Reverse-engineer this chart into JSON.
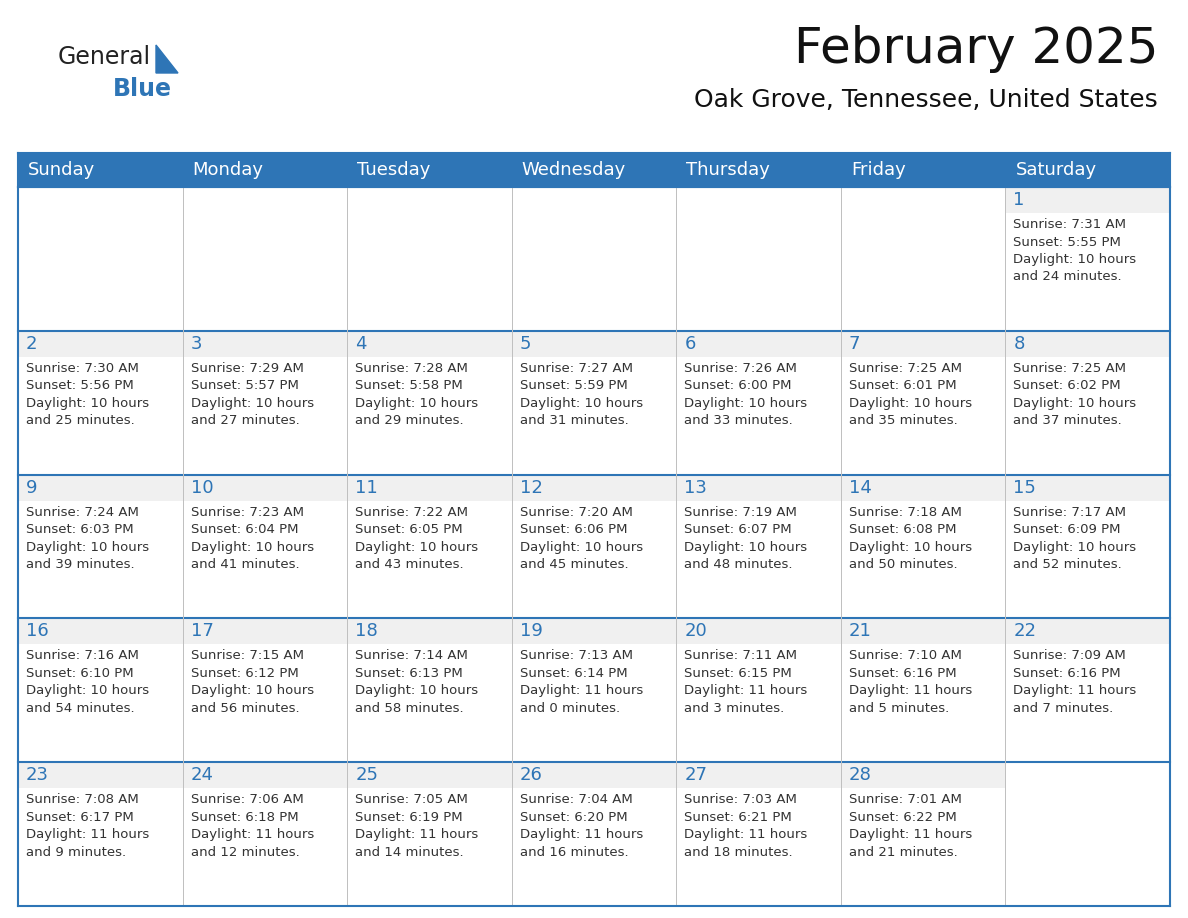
{
  "title": "February 2025",
  "subtitle": "Oak Grove, Tennessee, United States",
  "header_color": "#2E75B6",
  "header_text_color": "#FFFFFF",
  "grid_line_color": "#2E75B6",
  "day_num_bg_color": "#F0F0F0",
  "day_headers": [
    "Sunday",
    "Monday",
    "Tuesday",
    "Wednesday",
    "Thursday",
    "Friday",
    "Saturday"
  ],
  "title_fontsize": 36,
  "subtitle_fontsize": 18,
  "header_fontsize": 13,
  "cell_fontsize": 9.5,
  "day_num_fontsize": 13,
  "background_color": "#FFFFFF",
  "cell_text_color": "#333333",
  "day_number_color": "#2E75B6",
  "logo_color1": "#222222",
  "logo_color2": "#2E75B6",
  "calendar_data": [
    [
      null,
      null,
      null,
      null,
      null,
      null,
      1
    ],
    [
      2,
      3,
      4,
      5,
      6,
      7,
      8
    ],
    [
      9,
      10,
      11,
      12,
      13,
      14,
      15
    ],
    [
      16,
      17,
      18,
      19,
      20,
      21,
      22
    ],
    [
      23,
      24,
      25,
      26,
      27,
      28,
      null
    ]
  ],
  "cell_info": {
    "1": {
      "sunrise": "7:31 AM",
      "sunset": "5:55 PM",
      "daylight_hours": "10 hours",
      "daylight_mins": "and 24 minutes."
    },
    "2": {
      "sunrise": "7:30 AM",
      "sunset": "5:56 PM",
      "daylight_hours": "10 hours",
      "daylight_mins": "and 25 minutes."
    },
    "3": {
      "sunrise": "7:29 AM",
      "sunset": "5:57 PM",
      "daylight_hours": "10 hours",
      "daylight_mins": "and 27 minutes."
    },
    "4": {
      "sunrise": "7:28 AM",
      "sunset": "5:58 PM",
      "daylight_hours": "10 hours",
      "daylight_mins": "and 29 minutes."
    },
    "5": {
      "sunrise": "7:27 AM",
      "sunset": "5:59 PM",
      "daylight_hours": "10 hours",
      "daylight_mins": "and 31 minutes."
    },
    "6": {
      "sunrise": "7:26 AM",
      "sunset": "6:00 PM",
      "daylight_hours": "10 hours",
      "daylight_mins": "and 33 minutes."
    },
    "7": {
      "sunrise": "7:25 AM",
      "sunset": "6:01 PM",
      "daylight_hours": "10 hours",
      "daylight_mins": "and 35 minutes."
    },
    "8": {
      "sunrise": "7:25 AM",
      "sunset": "6:02 PM",
      "daylight_hours": "10 hours",
      "daylight_mins": "and 37 minutes."
    },
    "9": {
      "sunrise": "7:24 AM",
      "sunset": "6:03 PM",
      "daylight_hours": "10 hours",
      "daylight_mins": "and 39 minutes."
    },
    "10": {
      "sunrise": "7:23 AM",
      "sunset": "6:04 PM",
      "daylight_hours": "10 hours",
      "daylight_mins": "and 41 minutes."
    },
    "11": {
      "sunrise": "7:22 AM",
      "sunset": "6:05 PM",
      "daylight_hours": "10 hours",
      "daylight_mins": "and 43 minutes."
    },
    "12": {
      "sunrise": "7:20 AM",
      "sunset": "6:06 PM",
      "daylight_hours": "10 hours",
      "daylight_mins": "and 45 minutes."
    },
    "13": {
      "sunrise": "7:19 AM",
      "sunset": "6:07 PM",
      "daylight_hours": "10 hours",
      "daylight_mins": "and 48 minutes."
    },
    "14": {
      "sunrise": "7:18 AM",
      "sunset": "6:08 PM",
      "daylight_hours": "10 hours",
      "daylight_mins": "and 50 minutes."
    },
    "15": {
      "sunrise": "7:17 AM",
      "sunset": "6:09 PM",
      "daylight_hours": "10 hours",
      "daylight_mins": "and 52 minutes."
    },
    "16": {
      "sunrise": "7:16 AM",
      "sunset": "6:10 PM",
      "daylight_hours": "10 hours",
      "daylight_mins": "and 54 minutes."
    },
    "17": {
      "sunrise": "7:15 AM",
      "sunset": "6:12 PM",
      "daylight_hours": "10 hours",
      "daylight_mins": "and 56 minutes."
    },
    "18": {
      "sunrise": "7:14 AM",
      "sunset": "6:13 PM",
      "daylight_hours": "10 hours",
      "daylight_mins": "and 58 minutes."
    },
    "19": {
      "sunrise": "7:13 AM",
      "sunset": "6:14 PM",
      "daylight_hours": "11 hours",
      "daylight_mins": "and 0 minutes."
    },
    "20": {
      "sunrise": "7:11 AM",
      "sunset": "6:15 PM",
      "daylight_hours": "11 hours",
      "daylight_mins": "and 3 minutes."
    },
    "21": {
      "sunrise": "7:10 AM",
      "sunset": "6:16 PM",
      "daylight_hours": "11 hours",
      "daylight_mins": "and 5 minutes."
    },
    "22": {
      "sunrise": "7:09 AM",
      "sunset": "6:16 PM",
      "daylight_hours": "11 hours",
      "daylight_mins": "and 7 minutes."
    },
    "23": {
      "sunrise": "7:08 AM",
      "sunset": "6:17 PM",
      "daylight_hours": "11 hours",
      "daylight_mins": "and 9 minutes."
    },
    "24": {
      "sunrise": "7:06 AM",
      "sunset": "6:18 PM",
      "daylight_hours": "11 hours",
      "daylight_mins": "and 12 minutes."
    },
    "25": {
      "sunrise": "7:05 AM",
      "sunset": "6:19 PM",
      "daylight_hours": "11 hours",
      "daylight_mins": "and 14 minutes."
    },
    "26": {
      "sunrise": "7:04 AM",
      "sunset": "6:20 PM",
      "daylight_hours": "11 hours",
      "daylight_mins": "and 16 minutes."
    },
    "27": {
      "sunrise": "7:03 AM",
      "sunset": "6:21 PM",
      "daylight_hours": "11 hours",
      "daylight_mins": "and 18 minutes."
    },
    "28": {
      "sunrise": "7:01 AM",
      "sunset": "6:22 PM",
      "daylight_hours": "11 hours",
      "daylight_mins": "and 21 minutes."
    }
  }
}
